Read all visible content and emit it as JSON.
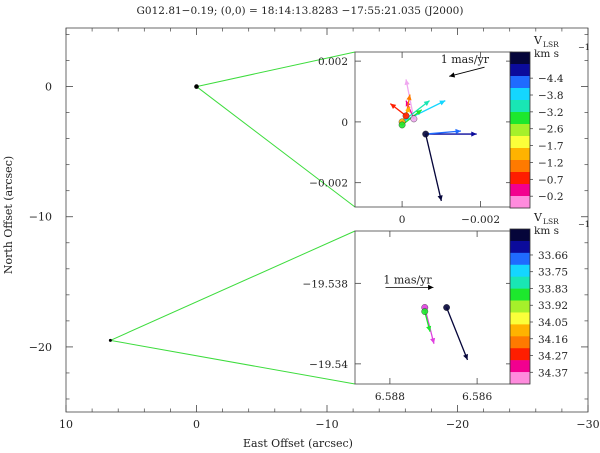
{
  "chart_data": [
    {
      "type": "scatter",
      "role": "main",
      "title": "G012.81−0.19;   (0,0) = 18:14:13.8283   −17:55:21.035 (J2000)",
      "xlabel": "East Offset (arcsec)",
      "ylabel": "North Offset (arcsec)",
      "xlim": [
        10,
        -30
      ],
      "ylim": [
        -25,
        4.5
      ],
      "x_ticks": [
        10,
        0,
        -10,
        -20,
        -30
      ],
      "y_ticks": [
        0,
        -10,
        -20
      ],
      "tick_labels_x": [
        "10",
        "0",
        "−10",
        "−20",
        "−30"
      ],
      "tick_labels_y": [
        "0",
        "−10",
        "−20"
      ],
      "points": [
        {
          "x": 0.0,
          "y": 0.0
        },
        {
          "x": 6.6,
          "y": -19.5
        }
      ],
      "grid": false
    },
    {
      "type": "scatter",
      "role": "inset-upper",
      "xlim": [
        0.0012,
        -0.0028
      ],
      "ylim": [
        -0.0028,
        0.0023
      ],
      "tick_labels_x": [
        "0",
        "−0.002"
      ],
      "tick_labels_y": [
        "0.002",
        "0",
        "−0.002"
      ],
      "scale_label": "1 mas/yr",
      "colorbar_title": "V",
      "colorbar_sub": "LSR",
      "colorbar_exp": "−1",
      "colorbar_unit": "km  s",
      "colorbar_labels": [
        "−4.4",
        "−3.8",
        "−3.2",
        "−2.6",
        "−1.7",
        "−1.2",
        "−0.7",
        "−0.2"
      ],
      "colorbar_colors": [
        "#05053a",
        "#0b0b9b",
        "#1f6bff",
        "#14d6ff",
        "#19e6b4",
        "#1de82d",
        "#a6f02a",
        "#fbff3a",
        "#ffb300",
        "#ff7a00",
        "#ff1e00",
        "#f2008f",
        "#ff8bdd"
      ],
      "spots": [
        {
          "x": -0.0003,
          "y": 0.0001,
          "dx": 0.0002,
          "dy": 0.0013,
          "color": "#f0a8f0"
        },
        {
          "x": -0.0003,
          "y": 0.0001,
          "dx": 0.0002,
          "dy": 0.0006,
          "color": "#f2008f"
        },
        {
          "x": -0.0001,
          "y": 0.0002,
          "dx": 0.0004,
          "dy": 0.0004,
          "color": "#ff1e00"
        },
        {
          "x": -0.0001,
          "y": 0.0002,
          "dx": -0.0001,
          "dy": 0.0007,
          "color": "#ff7a00"
        },
        {
          "x": 0.0,
          "y": 0.0,
          "dx": -0.0002,
          "dy": 0.0005,
          "color": "#ffb300"
        },
        {
          "x": 0.0,
          "y": 0.0,
          "dx": -0.0007,
          "dy": 0.0007,
          "color": "#19e6b4"
        },
        {
          "x": 0.0,
          "y": 0.0,
          "dx": -0.0011,
          "dy": 0.0007,
          "color": "#14d6ff"
        },
        {
          "x": 0.0,
          "y": -0.0001,
          "dx": -0.0005,
          "dy": 0.0005,
          "color": "#1de82d"
        },
        {
          "x": -0.0006,
          "y": -0.0004,
          "dx": -0.0004,
          "dy": -0.0022,
          "color": "#05053a"
        },
        {
          "x": -0.0006,
          "y": -0.0004,
          "dx": -0.0013,
          "dy": 0.0,
          "color": "#0b0b9b"
        },
        {
          "x": -0.0006,
          "y": -0.0004,
          "dx": -0.0009,
          "dy": 0.0001,
          "color": "#1f6bff"
        },
        {
          "x": -0.0021,
          "y": 0.0018,
          "dx": 0.0009,
          "dy": -0.0003,
          "color": "#000000"
        }
      ]
    },
    {
      "type": "scatter",
      "role": "inset-lower",
      "xlim": [
        6.5888,
        6.5852
      ],
      "ylim": [
        -19.5405,
        -19.5367
      ],
      "tick_labels_x": [
        "6.588",
        "6.586"
      ],
      "tick_labels_y": [
        "−19.538",
        "−19.54"
      ],
      "scale_label": "1 mas/yr",
      "colorbar_title": "V",
      "colorbar_sub": "LSR",
      "colorbar_exp": "−1",
      "colorbar_unit": "km  s",
      "colorbar_labels": [
        "33.66",
        "33.75",
        "33.83",
        "33.92",
        "34.05",
        "34.16",
        "34.27",
        "34.37"
      ],
      "colorbar_colors": [
        "#05053a",
        "#0b0b9b",
        "#1f6bff",
        "#14d6ff",
        "#19e6b4",
        "#1de82d",
        "#a6f02a",
        "#fbff3a",
        "#ffb300",
        "#ff7a00",
        "#ff1e00",
        "#f2008f",
        "#ff8bdd"
      ],
      "spots": [
        {
          "x": 6.5867,
          "y": -19.5386,
          "dx": -0.00048,
          "dy": -0.0013,
          "color": "#05053a"
        },
        {
          "x": 6.5872,
          "y": -19.5386,
          "dx": -0.00021,
          "dy": -0.0009,
          "color": "#e040e0"
        },
        {
          "x": 6.5872,
          "y": -19.5387,
          "dx": -0.00012,
          "dy": -0.0005,
          "color": "#1de82d"
        },
        {
          "x": 6.5881,
          "y": -19.5381,
          "dx": -0.0011,
          "dy": 0.0,
          "color": "#000000"
        }
      ]
    }
  ]
}
